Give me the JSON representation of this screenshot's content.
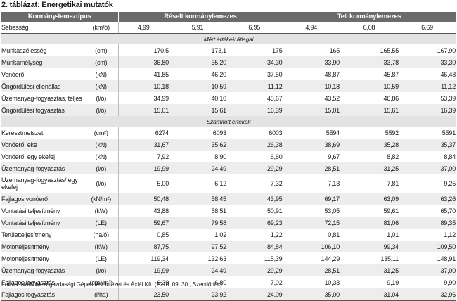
{
  "title": "2. táblázat: Energetikai mutatók",
  "headers": {
    "col0": "Kormány-lemeztípus",
    "group1": "Réselt kormánylemezes",
    "group2": "Teli kormánylemezes"
  },
  "speed_row": {
    "label": "Sebesség",
    "unit": "(km/ó)",
    "values": [
      "4,99",
      "5,91",
      "6,95",
      "4,94",
      "6,08",
      "6,69"
    ]
  },
  "sections": [
    {
      "title": "Mért értékek átlagai",
      "rows": [
        {
          "label": "Munkaszélesség",
          "unit": "(cm)",
          "values": [
            "170,5",
            "173,1",
            "175",
            "165",
            "165,55",
            "167,90"
          ]
        },
        {
          "label": "Munkamélység",
          "unit": "(cm)",
          "values": [
            "36,80",
            "35,20",
            "34,30",
            "33,90",
            "33,78",
            "33,30"
          ]
        },
        {
          "label": "Vonóerő",
          "unit": "(kN)",
          "values": [
            "41,85",
            "46,20",
            "37,50",
            "48,87",
            "45,87",
            "46,48"
          ]
        },
        {
          "label": "Öngördülési ellenállás",
          "unit": "(kN)",
          "values": [
            "10,18",
            "10,59",
            "11,12",
            "10,18",
            "10,59",
            "11,12"
          ]
        },
        {
          "label": "Üzemanyag-fogyasztás, teljes",
          "unit": "(l/ó)",
          "values": [
            "34,99",
            "40,10",
            "45,67",
            "43,52",
            "46,86",
            "53,39"
          ]
        },
        {
          "label": "Öngördülési fogyasztás",
          "unit": "(l/ó)",
          "values": [
            "15,01",
            "15,61",
            "16,39",
            "15,01",
            "15,61",
            "16,39"
          ]
        }
      ]
    },
    {
      "title": "Számított értékek",
      "rows": [
        {
          "label": "Keresztmetszet",
          "unit": "(cm²)",
          "values": [
            "6274",
            "6093",
            "6003",
            "5594",
            "5592",
            "5591"
          ]
        },
        {
          "label": "Vonóerő, eke",
          "unit": "(kN)",
          "values": [
            "31,67",
            "35,62",
            "26,38",
            "38,69",
            "35,28",
            "35,37"
          ]
        },
        {
          "label": "Vonóerő, egy ekefej",
          "unit": "(kN)",
          "values": [
            "7,92",
            "8,90",
            "6,60",
            "9,67",
            "8,82",
            "8,84"
          ]
        },
        {
          "label": "Üzemanyag-fogyasztás",
          "unit": "(l/ó)",
          "values": [
            "19,99",
            "24,49",
            "29,29",
            "28,51",
            "31,25",
            "37,00"
          ]
        },
        {
          "label": "Üzemanyag-fogyasztás/ egy ekefej",
          "unit": "(l/ó)",
          "values": [
            "5,00",
            "6,12",
            "7,32",
            "7,13",
            "7,81",
            "9,25"
          ],
          "tall": true
        },
        {
          "label": "Fajlagos vonóerő",
          "unit": "(kN/m²)",
          "values": [
            "50,48",
            "58,45",
            "43,95",
            "69,17",
            "63,09",
            "63,26"
          ]
        },
        {
          "label": "Vontatási teljesítmény",
          "unit": "(kW)",
          "values": [
            "43,88",
            "58,51",
            "50,91",
            "53,05",
            "59,61",
            "65,70"
          ]
        },
        {
          "label": "Vontatási teljesítmény",
          "unit": "(LE)",
          "values": [
            "59,67",
            "79,58",
            "69,23",
            "72,15",
            "81,06",
            "89,35"
          ]
        },
        {
          "label": "Területteljesítmény",
          "unit": "(ha/ó)",
          "values": [
            "0,85",
            "1,02",
            "1,22",
            "0,81",
            "1,01",
            "1,12"
          ]
        },
        {
          "label": "Motorteljesítmény",
          "unit": "(kW)",
          "values": [
            "87,75",
            "97,52",
            "84,84",
            "106,10",
            "99,34",
            "109,50"
          ]
        },
        {
          "label": "Motorteljesítmény",
          "unit": "(LE)",
          "values": [
            "119,34",
            "132,63",
            "115,39",
            "144,29",
            "135,11",
            "148,91"
          ]
        },
        {
          "label": "Üzemanyag-fogyasztás",
          "unit": "(l/ó)",
          "values": [
            "19,99",
            "24,49",
            "29,29",
            "28,51",
            "31,25",
            "37,00"
          ]
        },
        {
          "label": "Fajlagos fogyasztás",
          "unit": "(cm³/m³)",
          "values": [
            "6,39",
            "6,80",
            "7,02",
            "10,33",
            "9,19",
            "9,90"
          ]
        },
        {
          "label": "Fajlagos fogyasztás",
          "unit": "(l/ha)",
          "values": [
            "23,50",
            "23,92",
            "24,09",
            "35,00",
            "31,04",
            "32,96"
          ]
        }
      ]
    }
  ],
  "source": "Forrás: NAIK Mezőgazdasági Gépesítési Intézet és Áxiál Kft. (2010. 09. 30., Szentlőrinc)"
}
